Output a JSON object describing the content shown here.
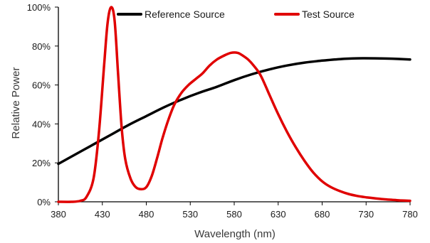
{
  "chart_data": {
    "type": "line",
    "title": "",
    "xlabel": "Wavelength (nm)",
    "ylabel": "Relative Power",
    "xlim": [
      380,
      780
    ],
    "ylim": [
      0,
      100
    ],
    "x_ticks": [
      380,
      430,
      480,
      530,
      580,
      630,
      680,
      730,
      780
    ],
    "x_tick_labels": [
      "380",
      "430",
      "480",
      "530",
      "580",
      "630",
      "680",
      "730",
      "780"
    ],
    "y_ticks": [
      0,
      20,
      40,
      60,
      80,
      100
    ],
    "y_tick_labels": [
      "0%",
      "20%",
      "40%",
      "60%",
      "80%",
      "100%"
    ],
    "grid": false,
    "legend_position": "top",
    "series": [
      {
        "name": "Reference Source",
        "color": "#000000",
        "x": [
          380,
          400,
          420,
          440,
          460,
          480,
          500,
          520,
          540,
          560,
          580,
          600,
          620,
          640,
          660,
          680,
          700,
          720,
          740,
          760,
          780
        ],
        "values": [
          19.5,
          24.5,
          29.5,
          34.5,
          39.5,
          44,
          48.5,
          52.5,
          56,
          59,
          62.5,
          65.5,
          68,
          70,
          71.5,
          72.5,
          73.3,
          73.7,
          73.7,
          73.5,
          73.1
        ]
      },
      {
        "name": "Test Source",
        "color": "#e00000",
        "x": [
          380,
          395,
          405,
          412,
          420,
          426,
          432,
          436,
          440,
          444,
          448,
          452,
          456,
          462,
          468,
          474,
          480,
          486,
          492,
          498,
          505,
          512,
          520,
          528,
          536,
          544,
          552,
          560,
          568,
          576,
          584,
          590,
          596,
          602,
          610,
          620,
          630,
          640,
          650,
          660,
          670,
          680,
          690,
          700,
          710,
          720,
          730,
          740,
          750,
          760,
          770,
          780
        ],
        "values": [
          0,
          0,
          0.5,
          2.5,
          12,
          35,
          70,
          92,
          100,
          93,
          65,
          38,
          22,
          12,
          7.5,
          6.5,
          7.5,
          13,
          22,
          32,
          42,
          50,
          56,
          60,
          63,
          66,
          70,
          73,
          75,
          76.5,
          76.5,
          75,
          73,
          70,
          65,
          55,
          45,
          36,
          28,
          21,
          15,
          10.5,
          7.5,
          5.5,
          4,
          3,
          2.3,
          1.8,
          1.3,
          1,
          0.7,
          0.5
        ]
      }
    ]
  }
}
